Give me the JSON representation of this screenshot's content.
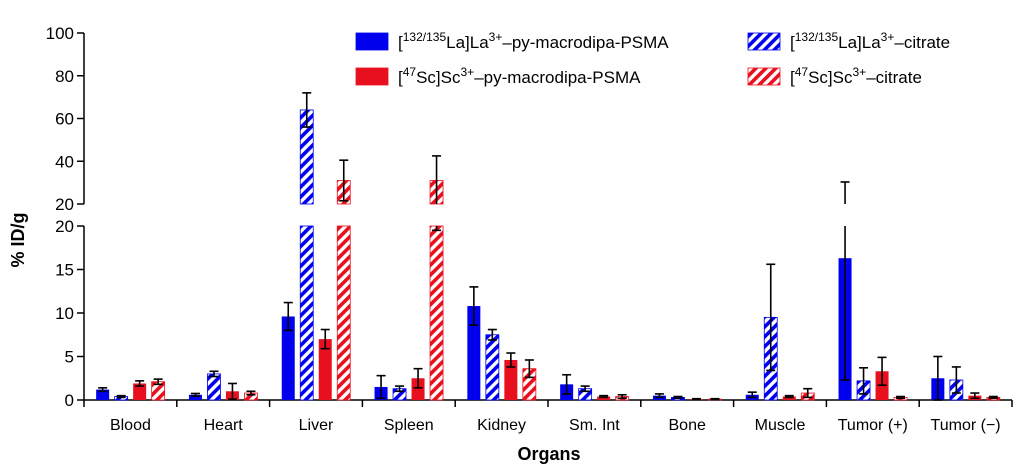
{
  "chart_data": {
    "type": "bar",
    "xlabel": "Organs",
    "ylabel": "% ID/g",
    "categories": [
      "Blood",
      "Heart",
      "Liver",
      "Spleen",
      "Kidney",
      "Sm. Int",
      "Bone",
      "Muscle",
      "Tumor (+)",
      "Tumor (−)"
    ],
    "y_axis_break": {
      "lower_range": [
        0,
        20
      ],
      "lower_ticks": [
        "0",
        "5",
        "10",
        "15",
        "20"
      ],
      "upper_range": [
        20,
        100
      ],
      "upper_ticks": [
        "20",
        "40",
        "60",
        "80",
        "100"
      ]
    },
    "legend_position": "top-right",
    "series": [
      {
        "name": [
          "[",
          "132/135",
          "La]La",
          "3+",
          "–py-macrodipa-PSMA"
        ],
        "color": "#0000ee",
        "pattern": "solid",
        "values": [
          1.2,
          0.6,
          9.6,
          1.5,
          10.8,
          1.8,
          0.5,
          0.6,
          16.3,
          2.5
        ],
        "errors": [
          0.2,
          0.15,
          1.6,
          1.3,
          2.2,
          1.1,
          0.2,
          0.3,
          14.0,
          2.5
        ]
      },
      {
        "name": [
          "[",
          "132/135",
          "La]La",
          "3+",
          "–citrate"
        ],
        "color": "#0000ee",
        "pattern": "hatched",
        "values": [
          0.4,
          3.0,
          64.0,
          1.3,
          7.5,
          1.3,
          0.3,
          9.5,
          2.2,
          2.3
        ],
        "errors": [
          0.1,
          0.3,
          8.0,
          0.3,
          0.6,
          0.3,
          0.1,
          6.1,
          1.5,
          1.5
        ]
      },
      {
        "name": [
          "[",
          "47",
          "Sc]Sc",
          "3+",
          "–py-macrodipa-PSMA"
        ],
        "color": "#e8101e",
        "pattern": "solid",
        "values": [
          1.9,
          1.0,
          7.0,
          2.5,
          4.6,
          0.4,
          0.1,
          0.4,
          3.3,
          0.5
        ],
        "errors": [
          0.3,
          0.9,
          1.1,
          1.1,
          0.8,
          0.1,
          0.05,
          0.1,
          1.6,
          0.3
        ]
      },
      {
        "name": [
          "[",
          "47",
          "Sc]Sc",
          "3+",
          "–citrate"
        ],
        "color": "#e8101e",
        "pattern": "hatched",
        "values": [
          2.1,
          0.8,
          31.0,
          31.0,
          3.6,
          0.4,
          0.1,
          0.8,
          0.3,
          0.3
        ],
        "errors": [
          0.3,
          0.2,
          9.5,
          11.5,
          1.0,
          0.2,
          0.05,
          0.5,
          0.1,
          0.1
        ]
      }
    ]
  }
}
